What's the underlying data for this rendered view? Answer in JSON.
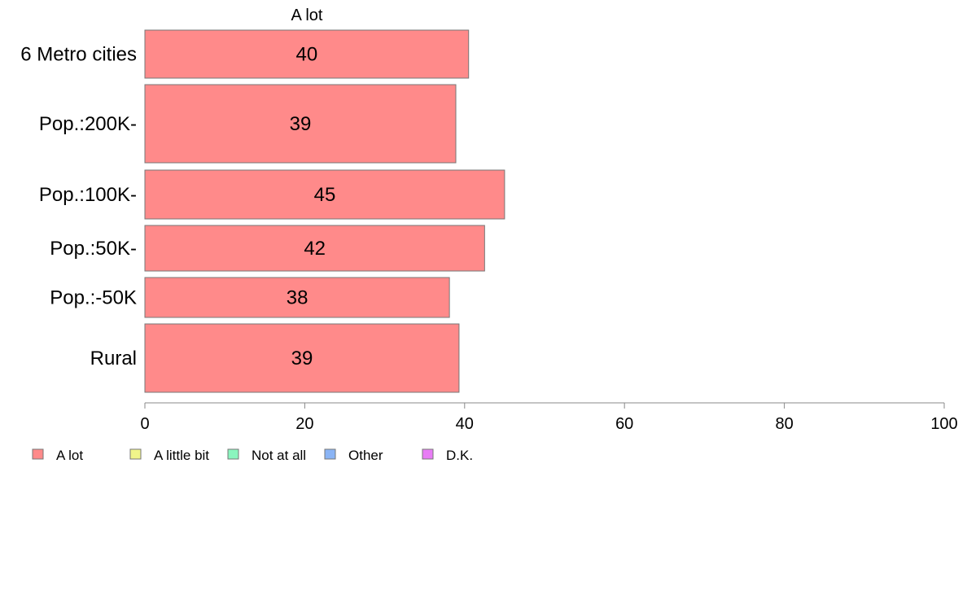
{
  "chart_data": {
    "type": "bar",
    "orientation": "horizontal",
    "stacked": true,
    "header_label": "A lot",
    "categories": [
      "6 Metro cities",
      "Pop.:200K-",
      "Pop.:100K-",
      "Pop.:50K-",
      "Pop.:-50K",
      "Rural"
    ],
    "series": [
      {
        "name": "A lot",
        "color": "#ff8a8a",
        "values": [
          40.5,
          38.9,
          45.0,
          42.5,
          38.1,
          39.3
        ],
        "labels": [
          "40",
          "39",
          "45",
          "42",
          "38",
          "39"
        ]
      }
    ],
    "xlim": [
      0,
      100
    ],
    "xticks": [
      "0",
      "20",
      "40",
      "60",
      "80",
      "100"
    ],
    "xlabel": "",
    "ylabel": "",
    "grid": false,
    "legend_position": "bottom-left",
    "legend": [
      {
        "name": "A lot",
        "color": "#ff8a8a"
      },
      {
        "name": "A little bit",
        "color": "#f0f58a"
      },
      {
        "name": "Not at all",
        "color": "#8af5be"
      },
      {
        "name": "Other",
        "color": "#8ab4f5"
      },
      {
        "name": "D.K.",
        "color": "#e87cf5"
      }
    ]
  }
}
